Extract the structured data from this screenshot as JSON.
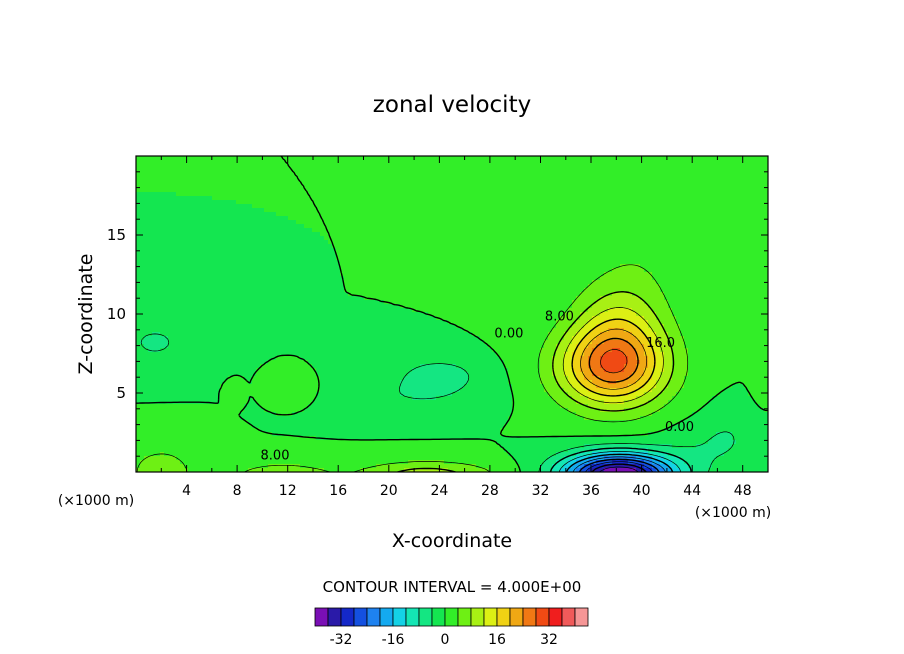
{
  "chart_data": {
    "type": "heatmap",
    "subtype": "filled-contour",
    "title": "zonal velocity",
    "xlabel": "X-coordinate",
    "ylabel": "Z-coordinate",
    "x_unit_left": "(×1000 m)",
    "x_unit_right": "(×1000 m)",
    "xlim": [
      0,
      50
    ],
    "ylim": [
      0,
      20
    ],
    "x_ticks": [
      4,
      8,
      12,
      16,
      20,
      24,
      28,
      32,
      36,
      40,
      44,
      48
    ],
    "y_ticks": [
      5,
      10,
      15
    ],
    "contour_interval_label": "CONTOUR INTERVAL = 4.000E+00",
    "contour_interval": 4,
    "colorbar": {
      "levels": [
        -40,
        -36,
        -32,
        -28,
        -24,
        -20,
        -16,
        -12,
        -8,
        -4,
        0,
        4,
        8,
        12,
        16,
        20,
        24,
        28,
        32,
        36,
        40
      ],
      "colors": [
        "#7a0fb5",
        "#2a1aa8",
        "#1428c8",
        "#1450e0",
        "#1e82f0",
        "#14aaf0",
        "#14d2e6",
        "#14e6b4",
        "#14e682",
        "#14e650",
        "#32ee28",
        "#6ef014",
        "#a8f014",
        "#dcf014",
        "#f0d214",
        "#f0a814",
        "#f07814",
        "#f04a14",
        "#f01e1e",
        "#f05a5a",
        "#f59696"
      ],
      "tick_values": [
        -32,
        -16,
        0,
        16,
        32
      ],
      "tick_labels": [
        "-32",
        "-16",
        "0",
        "16",
        "32"
      ]
    },
    "contour_labels": [
      {
        "text": "8.00",
        "x": 11.0,
        "z": 0.8
      },
      {
        "text": "0.00",
        "x": 29.5,
        "z": 8.5
      },
      {
        "text": "8.00",
        "x": 33.5,
        "z": 9.6
      },
      {
        "text": "16.0",
        "x": 41.5,
        "z": 7.9
      },
      {
        "text": "0.00",
        "x": 43.0,
        "z": 2.6
      }
    ]
  }
}
